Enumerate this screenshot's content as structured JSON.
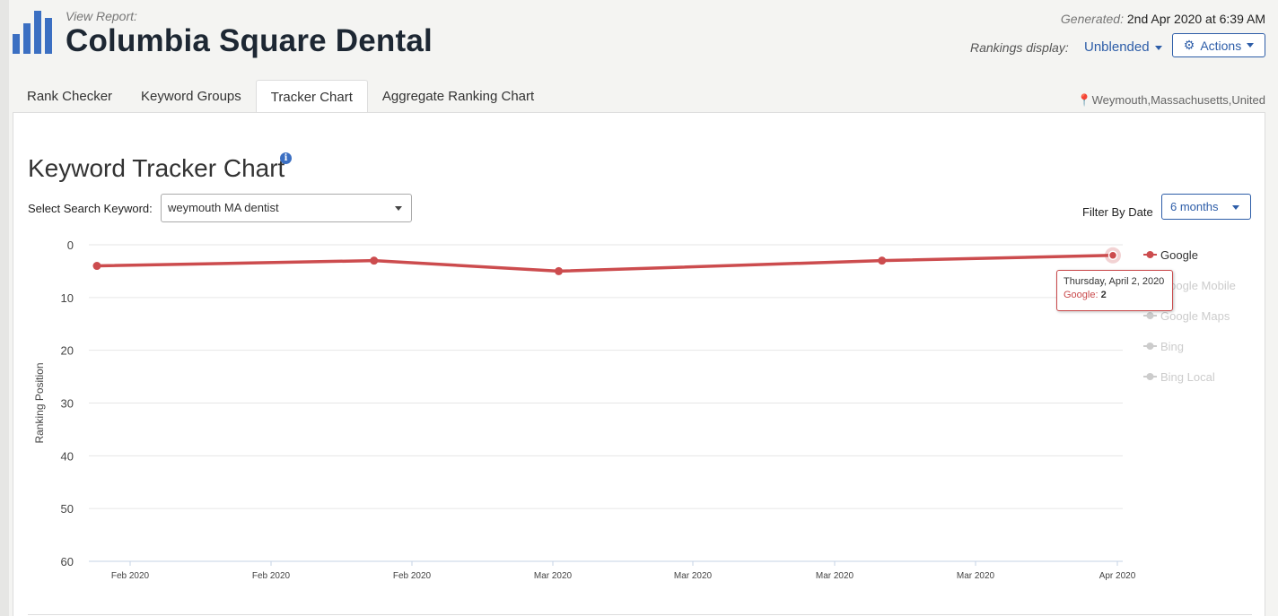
{
  "header": {
    "view_report_label": "View Report:",
    "report_title": "Columbia Square Dental",
    "generated_label": "Generated:",
    "generated_value": "2nd Apr 2020 at 6:39 AM",
    "rankings_display_label": "Rankings display:",
    "rankings_display_value": "Unblended",
    "actions_label": "Actions"
  },
  "tabs": [
    {
      "label": "Rank Checker",
      "active": false
    },
    {
      "label": "Keyword Groups",
      "active": false
    },
    {
      "label": "Tracker Chart",
      "active": true
    },
    {
      "label": "Aggregate Ranking Chart",
      "active": false
    }
  ],
  "location": "Weymouth,Massachusetts,United States",
  "panel": {
    "title": "Keyword Tracker Chart",
    "keyword_label": "Select Search Keyword:",
    "keyword_value": "weymouth MA dentist",
    "filter_label": "Filter By Date",
    "filter_value": "6 months"
  },
  "tooltip": {
    "date": "Thursday, April 2, 2020",
    "series": "Google",
    "value": "2"
  },
  "colors": {
    "series_google": "#cc4c4e",
    "accent_blue": "#2d5da8",
    "legend_inactive": "#cccccc"
  },
  "chart_data": {
    "type": "line",
    "ylabel": "Ranking Position",
    "ylim": [
      0,
      60
    ],
    "y_reversed": true,
    "y_ticks": [
      0,
      10,
      20,
      30,
      40,
      50,
      60
    ],
    "x_ticks": [
      "Feb 2020",
      "Feb 2020",
      "Feb 2020",
      "Mar 2020",
      "Mar 2020",
      "Mar 2020",
      "Mar 2020",
      "Apr 2020"
    ],
    "x_range": [
      "2020-01-27",
      "2020-04-02"
    ],
    "grid": true,
    "legend_position": "right",
    "series": [
      {
        "name": "Google",
        "active": true,
        "x": [
          "2020-01-27",
          "2020-02-14",
          "2020-02-26",
          "2020-03-18",
          "2020-04-02"
        ],
        "y": [
          4,
          3,
          5,
          3,
          2
        ]
      },
      {
        "name": "Google Mobile",
        "active": false,
        "x": [],
        "y": []
      },
      {
        "name": "Google Maps",
        "active": false,
        "x": [],
        "y": []
      },
      {
        "name": "Bing",
        "active": false,
        "x": [],
        "y": []
      },
      {
        "name": "Bing Local",
        "active": false,
        "x": [],
        "y": []
      }
    ]
  }
}
